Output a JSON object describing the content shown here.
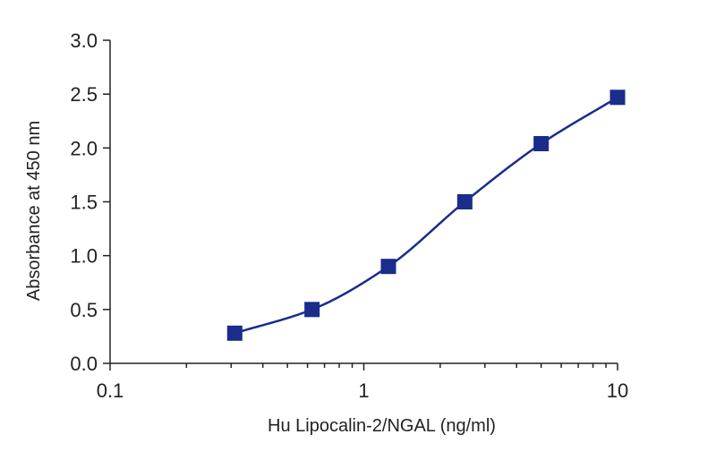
{
  "chart_data": {
    "type": "scatter",
    "title": "",
    "xlabel": "Hu Lipocalin-2/NGAL (ng/ml)",
    "ylabel": "Absorbance at 450 nm",
    "x_scale": "log",
    "xlim": [
      0.1,
      10
    ],
    "ylim": [
      0,
      3.0
    ],
    "x_ticks": [
      {
        "value": 0.1,
        "label": "0.1"
      },
      {
        "value": 1,
        "label": "1"
      },
      {
        "value": 10,
        "label": "10"
      }
    ],
    "y_ticks": [
      {
        "value": 0.0,
        "label": "0.0"
      },
      {
        "value": 0.5,
        "label": "0.5"
      },
      {
        "value": 1.0,
        "label": "1.0"
      },
      {
        "value": 1.5,
        "label": "1.5"
      },
      {
        "value": 2.0,
        "label": "2.0"
      },
      {
        "value": 2.5,
        "label": "2.5"
      },
      {
        "value": 3.0,
        "label": "3.0"
      }
    ],
    "grid": false,
    "series": [
      {
        "x": [
          0.31,
          0.625,
          1.25,
          2.5,
          5.0,
          10.0
        ],
        "y": [
          0.28,
          0.5,
          0.9,
          1.5,
          2.04,
          2.47
        ],
        "marker": "square",
        "color": "#1a2c8c",
        "fit_curve": true
      }
    ]
  }
}
